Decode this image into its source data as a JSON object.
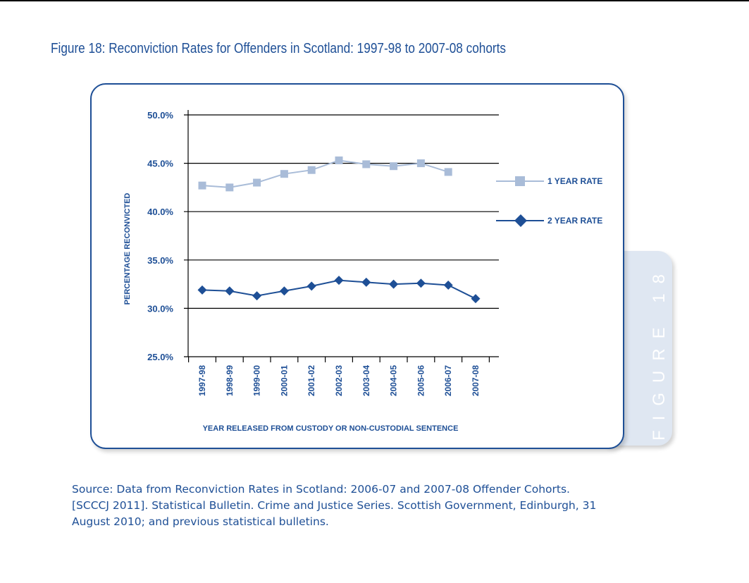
{
  "figure": {
    "title": "Figure 18: Reconviction Rates for Offenders in Scotland: 1997-98 to 2007-08 cohorts",
    "tab_label": "FIGURE 18"
  },
  "source": {
    "lines": [
      "Source: Data from Reconviction Rates in Scotland: 2006-07 and 2007-08 Offender Cohorts.",
      "[SCCCJ 2011]. Statistical Bulletin. Crime and Justice Series. Scottish Government, Edinburgh, 31",
      "August 2010; and previous statistical bulletins."
    ]
  },
  "colors": {
    "title": "#1e4f96",
    "axis_text": "#1e4f96",
    "series_1_year": "#a9bcd8",
    "series_2_year": "#1e4f96",
    "grid": "#000000"
  },
  "chart_data": {
    "type": "line",
    "title": "",
    "xlabel": "YEAR RELEASED FROM CUSTODY OR NON-CUSTODIAL SENTENCE",
    "ylabel": "PERCENTAGE RECONVICTED",
    "ylim": [
      25,
      50
    ],
    "y_ticks": [
      "25.0%",
      "30.0%",
      "35.0%",
      "40.0%",
      "45.0%",
      "50.0%"
    ],
    "y_tick_values": [
      25,
      30,
      35,
      40,
      45,
      50
    ],
    "grid": true,
    "legend_position": "right",
    "categories": [
      "1997-98",
      "1998-99",
      "1999-00",
      "2000-01",
      "2001-02",
      "2002-03",
      "2003-04",
      "2004-05",
      "2005-06",
      "2006-07",
      "2007-08"
    ],
    "series": [
      {
        "name": "1 YEAR RATE",
        "marker": "square",
        "color": "#a9bcd8",
        "values": [
          42.7,
          42.5,
          43.0,
          43.9,
          44.3,
          45.3,
          44.9,
          44.7,
          45.0,
          44.1,
          null
        ]
      },
      {
        "name": "2 YEAR RATE",
        "marker": "diamond",
        "color": "#1e4f96",
        "values": [
          31.9,
          31.8,
          31.3,
          31.8,
          32.3,
          32.9,
          32.7,
          32.5,
          32.6,
          32.4,
          31.0
        ]
      }
    ]
  }
}
